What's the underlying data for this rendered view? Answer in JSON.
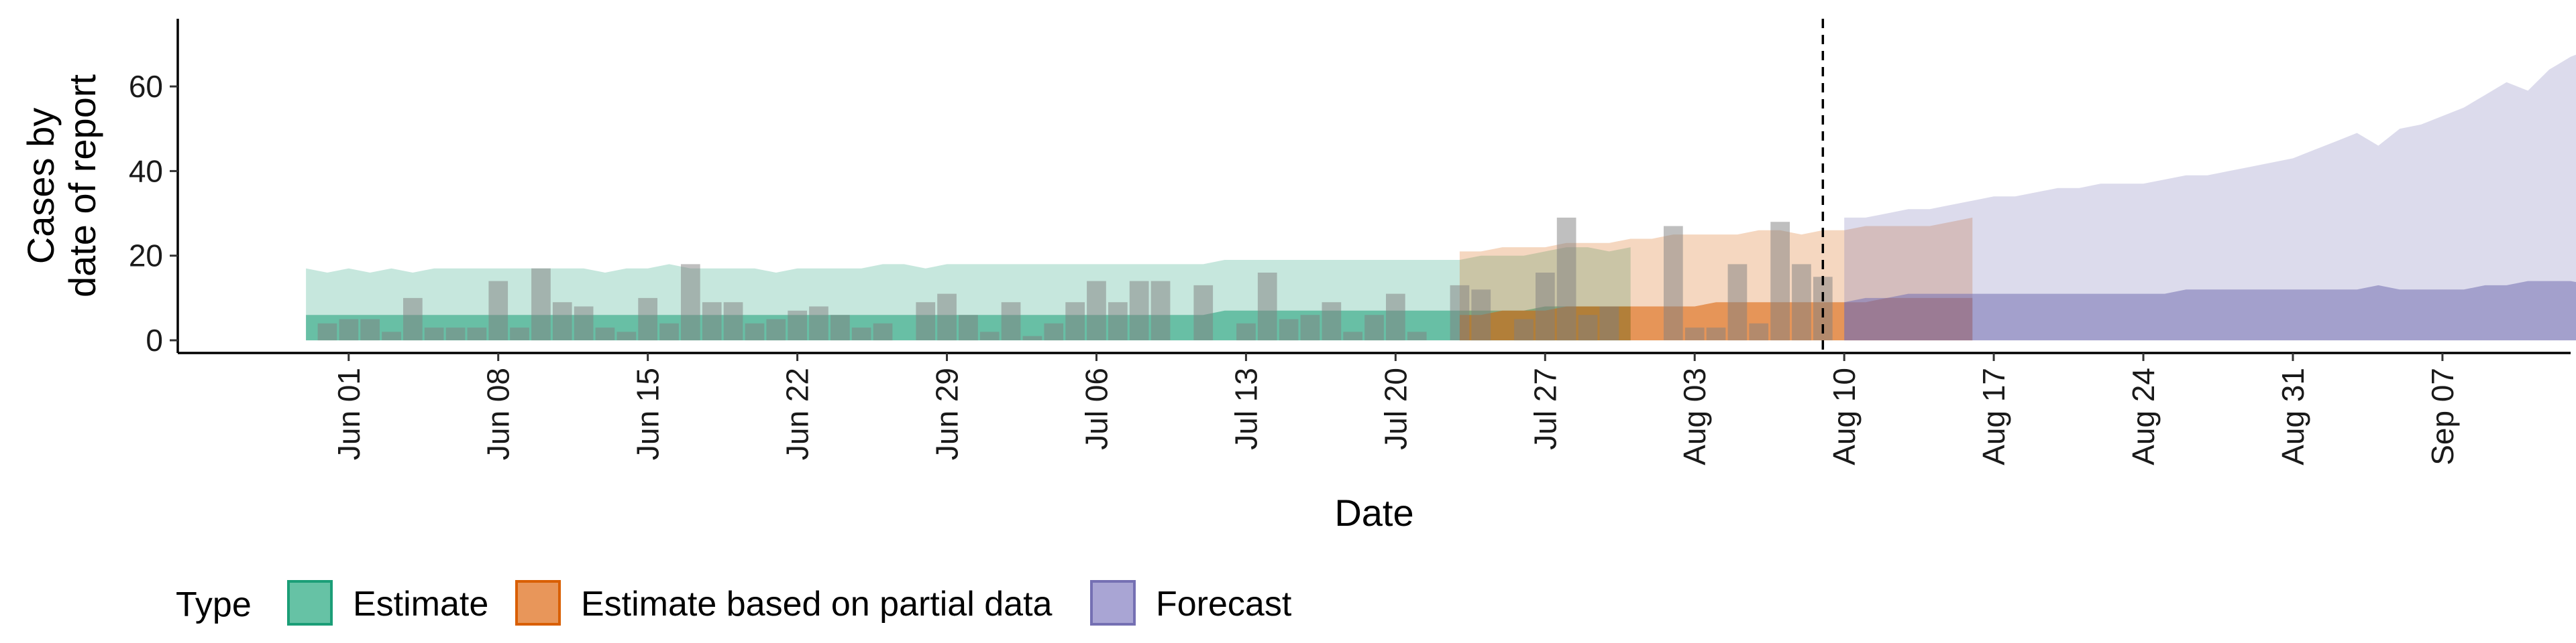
{
  "chart_data": {
    "type": "area",
    "xlabel": "Date",
    "ylabel_lines": [
      "Cases by",
      "date of report"
    ],
    "ylim": [
      -3,
      76
    ],
    "y_ticks": [
      0,
      20,
      40,
      60
    ],
    "x_range": [
      "2020-05-24",
      "2020-09-13"
    ],
    "x_ticks": [
      {
        "date": "2020-06-01",
        "label": "Jun 01"
      },
      {
        "date": "2020-06-08",
        "label": "Jun 08"
      },
      {
        "date": "2020-06-15",
        "label": "Jun 15"
      },
      {
        "date": "2020-06-22",
        "label": "Jun 22"
      },
      {
        "date": "2020-06-29",
        "label": "Jun 29"
      },
      {
        "date": "2020-07-06",
        "label": "Jul 06"
      },
      {
        "date": "2020-07-13",
        "label": "Jul 13"
      },
      {
        "date": "2020-07-20",
        "label": "Jul 20"
      },
      {
        "date": "2020-07-27",
        "label": "Jul 27"
      },
      {
        "date": "2020-08-03",
        "label": "Aug 03"
      },
      {
        "date": "2020-08-10",
        "label": "Aug 10"
      },
      {
        "date": "2020-08-17",
        "label": "Aug 17"
      },
      {
        "date": "2020-08-24",
        "label": "Aug 24"
      },
      {
        "date": "2020-08-31",
        "label": "Aug 31"
      },
      {
        "date": "2020-09-07",
        "label": "Sep 07"
      }
    ],
    "forecast_line_date": "2020-08-09",
    "grid": false,
    "legend": {
      "position": "bottom",
      "title": "Type"
    },
    "series": [
      {
        "name": "Estimate",
        "color": "#1B9E77",
        "start": "2020-05-30",
        "outer_upper": [
          17,
          16,
          17,
          16,
          17,
          16,
          17,
          17,
          17,
          17,
          17,
          17,
          17,
          17,
          16,
          17,
          17,
          18,
          17,
          17,
          17,
          17,
          16,
          17,
          17,
          17,
          17,
          18,
          18,
          17,
          18,
          18,
          18,
          18,
          18,
          18,
          18,
          18,
          18,
          18,
          18,
          18,
          18,
          19,
          19,
          19,
          19,
          19,
          19,
          19,
          19,
          19,
          19,
          19,
          19,
          20,
          20,
          20,
          21,
          22,
          22,
          21,
          22
        ],
        "outer_lower": [
          0,
          0,
          0,
          0,
          0,
          0,
          0,
          0,
          0,
          0,
          0,
          0,
          0,
          0,
          0,
          0,
          0,
          0,
          0,
          0,
          0,
          0,
          0,
          0,
          0,
          0,
          0,
          0,
          0,
          0,
          0,
          0,
          0,
          0,
          0,
          0,
          0,
          0,
          0,
          0,
          0,
          0,
          0,
          0,
          0,
          0,
          0,
          0,
          0,
          0,
          0,
          0,
          0,
          0,
          0,
          0,
          0,
          0,
          0,
          0,
          0,
          0,
          0
        ],
        "inner_upper": [
          6,
          6,
          6,
          6,
          6,
          6,
          6,
          6,
          6,
          6,
          6,
          6,
          6,
          6,
          6,
          6,
          6,
          6,
          6,
          6,
          6,
          6,
          6,
          6,
          6,
          6,
          6,
          6,
          6,
          6,
          6,
          6,
          6,
          6,
          6,
          6,
          6,
          6,
          6,
          6,
          6,
          6,
          6,
          7,
          7,
          7,
          7,
          7,
          7,
          7,
          7,
          7,
          7,
          7,
          7,
          7,
          7,
          7,
          8,
          8,
          8,
          8,
          8
        ],
        "inner_lower": [
          0,
          0,
          0,
          0,
          0,
          0,
          0,
          0,
          0,
          0,
          0,
          0,
          0,
          0,
          0,
          0,
          0,
          0,
          0,
          0,
          0,
          0,
          0,
          0,
          0,
          0,
          0,
          0,
          0,
          0,
          0,
          0,
          0,
          0,
          0,
          0,
          0,
          0,
          0,
          0,
          0,
          0,
          0,
          0,
          0,
          0,
          0,
          0,
          0,
          0,
          0,
          0,
          0,
          0,
          0,
          0,
          0,
          0,
          0,
          0,
          0,
          0,
          0
        ]
      },
      {
        "name": "Estimate based on partial data",
        "color": "#D95F02",
        "start": "2020-07-23",
        "outer_upper": [
          21,
          21,
          22,
          22,
          22,
          23,
          23,
          23,
          24,
          24,
          25,
          25,
          25,
          25,
          26,
          26,
          25,
          26,
          26,
          27,
          27,
          27,
          27,
          28,
          29
        ],
        "outer_lower": [
          0,
          0,
          0,
          0,
          0,
          0,
          0,
          0,
          0,
          0,
          0,
          0,
          0,
          0,
          0,
          0,
          0,
          0,
          0,
          0,
          0,
          0,
          0,
          0,
          0
        ],
        "inner_upper": [
          6,
          6,
          7,
          7,
          7,
          8,
          8,
          8,
          8,
          8,
          8,
          8,
          9,
          9,
          9,
          9,
          9,
          9,
          9,
          9,
          10,
          10,
          10,
          10,
          10
        ],
        "inner_lower": [
          0,
          0,
          0,
          0,
          0,
          0,
          0,
          0,
          0,
          0,
          0,
          0,
          0,
          0,
          0,
          0,
          0,
          0,
          0,
          0,
          0,
          0,
          0,
          0,
          0
        ]
      },
      {
        "name": "Forecast",
        "color": "#7570B3",
        "start": "2020-08-10",
        "outer_upper": [
          29,
          29,
          30,
          31,
          31,
          32,
          33,
          34,
          34,
          35,
          36,
          36,
          37,
          37,
          37,
          38,
          39,
          39,
          40,
          41,
          42,
          43,
          45,
          47,
          49,
          46,
          50,
          51,
          53,
          55,
          58,
          61,
          59,
          64,
          67,
          69,
          71,
          72,
          71
        ],
        "outer_lower": [
          0,
          0,
          0,
          0,
          0,
          0,
          0,
          0,
          0,
          0,
          0,
          0,
          0,
          0,
          0,
          0,
          0,
          0,
          0,
          0,
          0,
          0,
          0,
          0,
          0,
          0,
          0,
          0,
          0,
          0,
          0,
          0,
          0,
          0,
          0,
          0,
          0,
          0,
          0
        ],
        "inner_upper": [
          9,
          10,
          10,
          11,
          11,
          11,
          11,
          11,
          11,
          11,
          11,
          11,
          11,
          11,
          11,
          11,
          12,
          12,
          12,
          12,
          12,
          12,
          12,
          12,
          12,
          13,
          12,
          12,
          12,
          12,
          13,
          13,
          14,
          14,
          14,
          13,
          13,
          14,
          14
        ],
        "inner_lower": [
          0,
          0,
          0,
          0,
          0,
          0,
          0,
          0,
          0,
          0,
          0,
          0,
          0,
          0,
          0,
          0,
          0,
          0,
          0,
          0,
          0,
          0,
          0,
          0,
          0,
          0,
          0,
          0,
          0,
          0,
          0,
          0,
          0,
          0,
          0,
          0,
          0,
          0,
          0
        ]
      }
    ],
    "reported_cases": {
      "name": "Cases by date of report",
      "color": "#808080",
      "start": "2020-05-30",
      "values": [
        0,
        4,
        5,
        5,
        2,
        10,
        3,
        3,
        3,
        14,
        3,
        17,
        9,
        8,
        3,
        2,
        10,
        4,
        18,
        9,
        9,
        4,
        5,
        7,
        8,
        6,
        3,
        4,
        0,
        9,
        11,
        6,
        2,
        9,
        1,
        4,
        9,
        14,
        9,
        14,
        14,
        0,
        13,
        0,
        4,
        16,
        5,
        6,
        9,
        2,
        6,
        11,
        2,
        0,
        13,
        12,
        0,
        5,
        16,
        29,
        6,
        8,
        0,
        0,
        27,
        3,
        3,
        18,
        4,
        28,
        18,
        15
      ]
    },
    "legend_entries": [
      {
        "label": "Estimate",
        "fill": "#66C2A5",
        "border": "#1B9E77"
      },
      {
        "label": "Estimate based on partial data",
        "fill": "#E8965A",
        "border": "#D95F02"
      },
      {
        "label": "Forecast",
        "fill": "#A9A5D4",
        "border": "#7570B3"
      }
    ]
  }
}
